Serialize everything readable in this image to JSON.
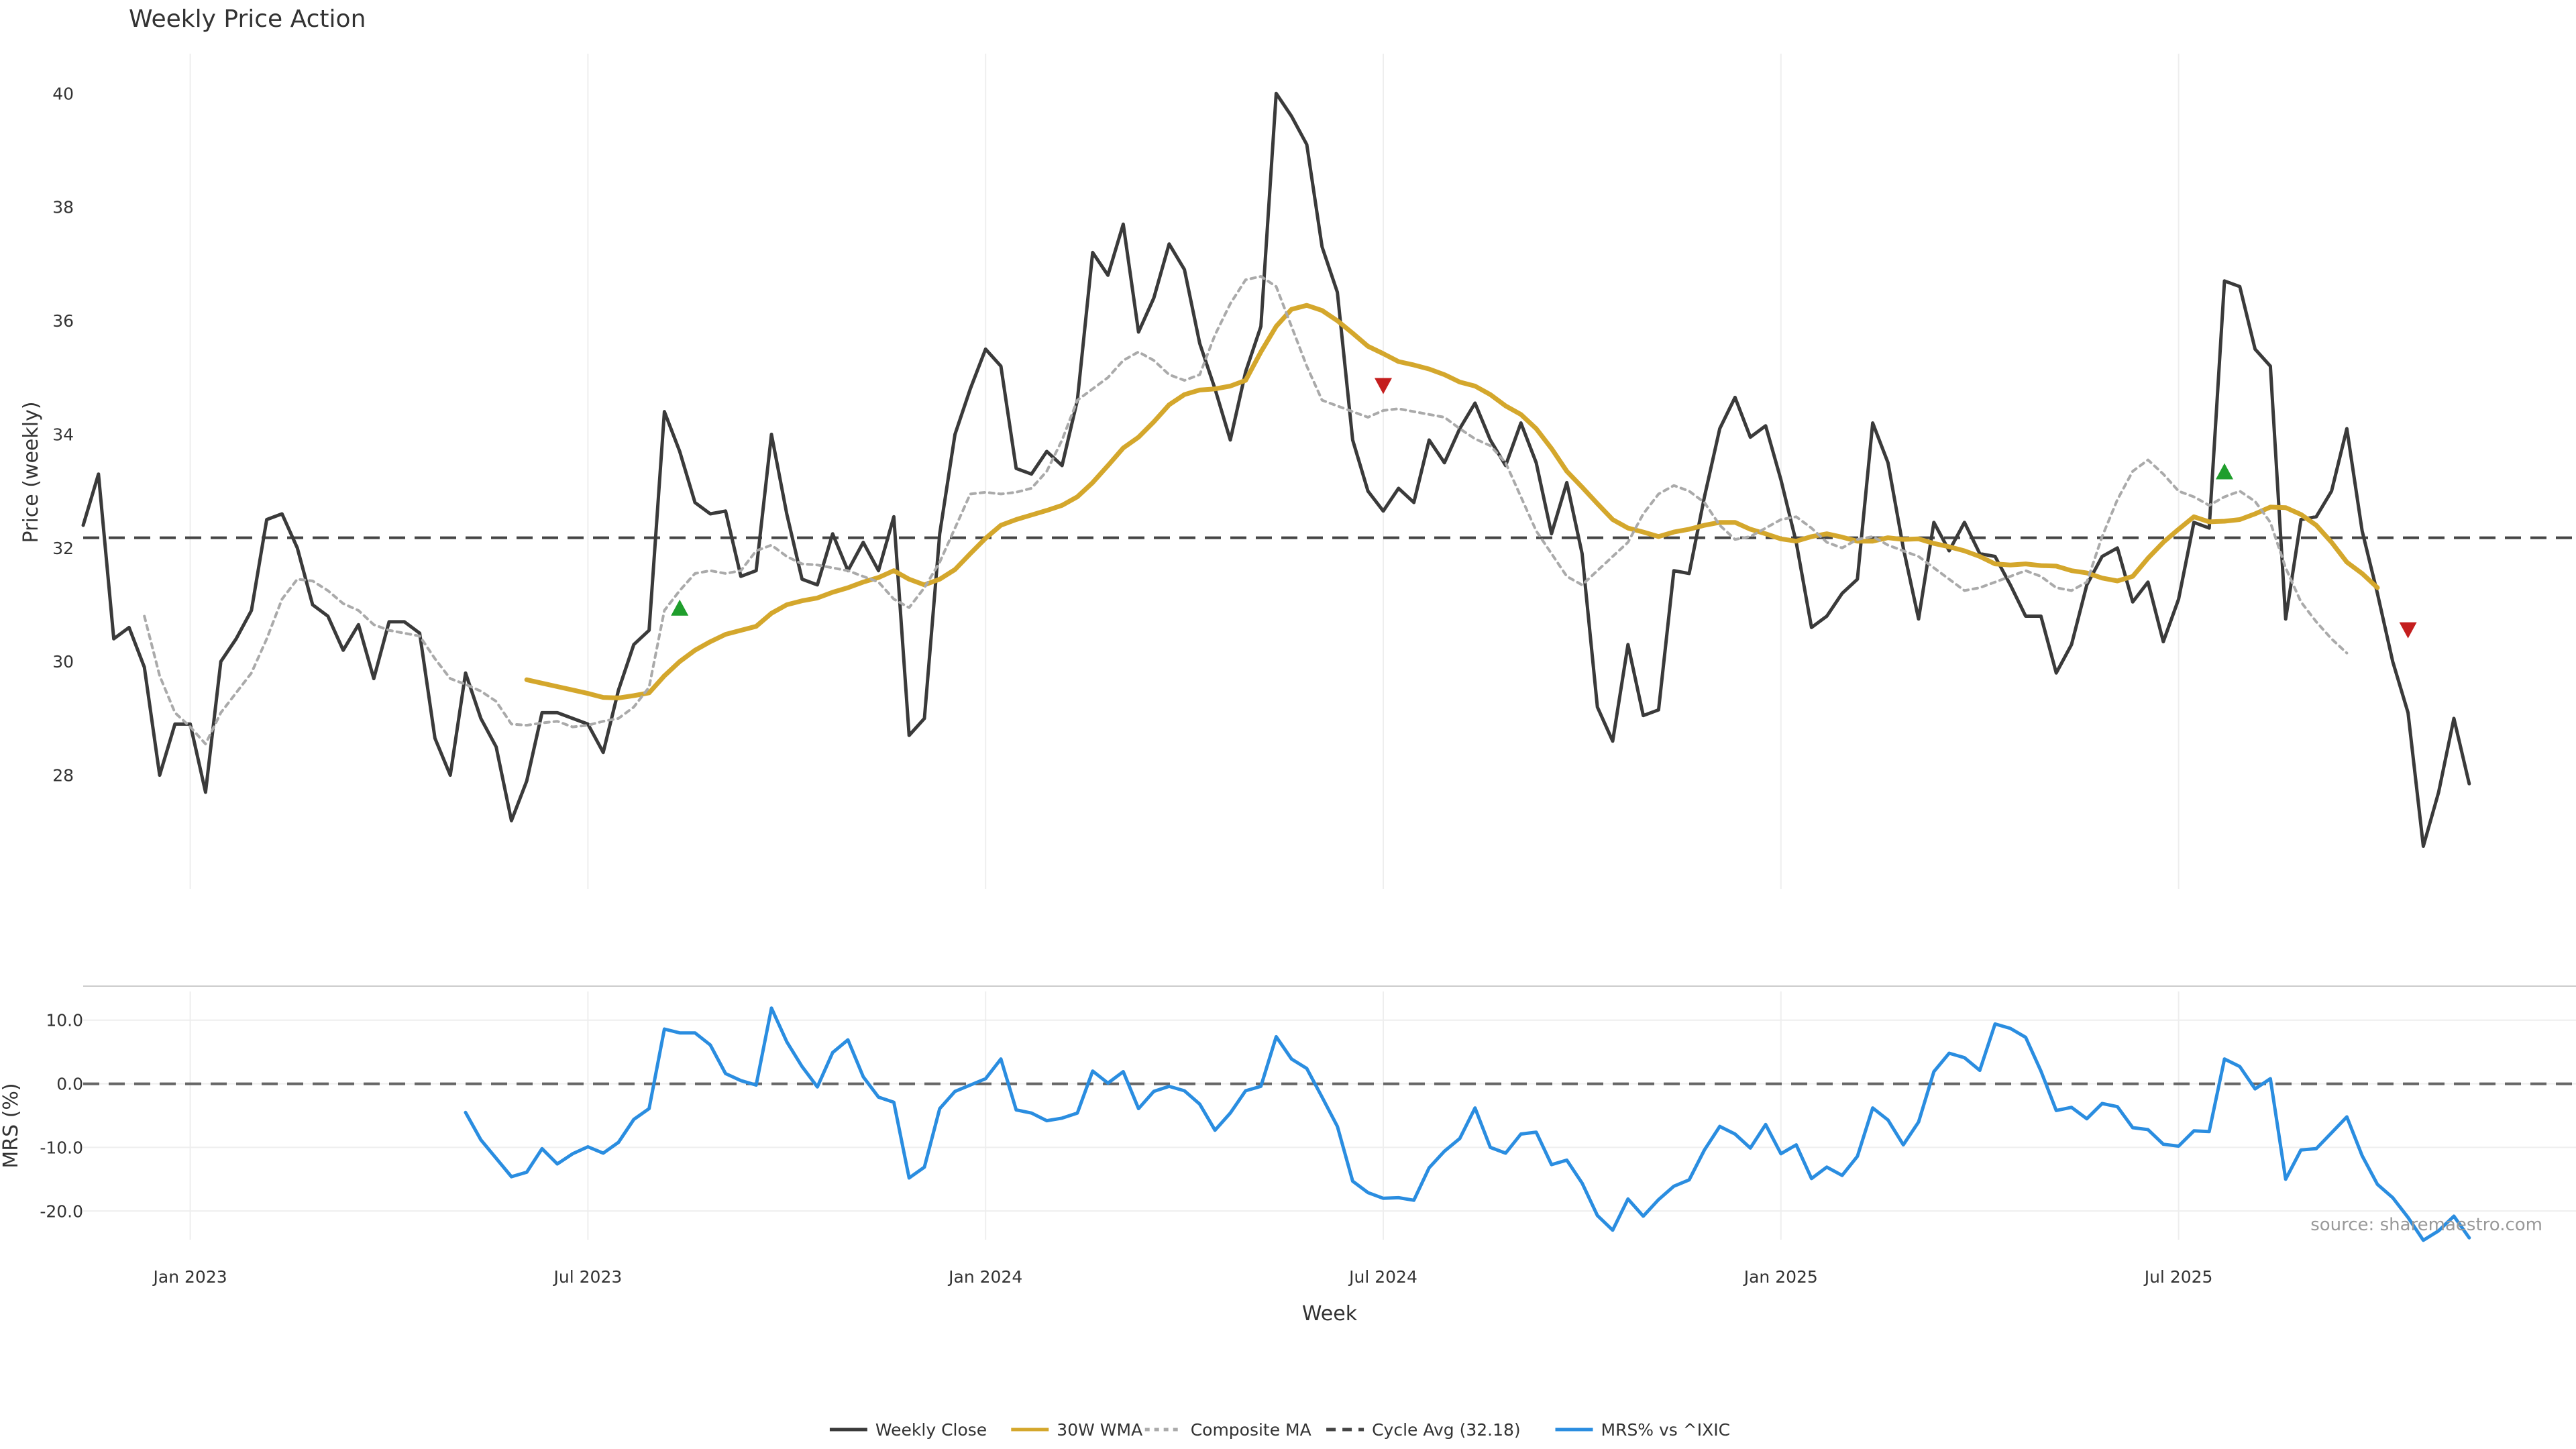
{
  "chart_data": {
    "type": "line",
    "title": "Weekly Price Action",
    "xlabel": "Week",
    "ylabel": "Price (weekly)",
    "ylabel2": "MRS (%)",
    "source": "source: sharemaestro.com",
    "x_tick_labels": [
      "Jan 2023",
      "Jul 2023",
      "Jan 2024",
      "Jul 2024",
      "Jan 2025",
      "Jul 2025"
    ],
    "x_tick_weeks": [
      7,
      33,
      59,
      85,
      111,
      137
    ],
    "y_ticks": [
      28,
      30,
      32,
      34,
      36,
      38,
      40
    ],
    "y_ticks_mrs": [
      10,
      0,
      -10,
      -20
    ],
    "y_ticks_mrs_labels": [
      "10.0",
      "0.0",
      "-10.0",
      "-20.0"
    ],
    "ylim": [
      26.0,
      40.7
    ],
    "ylim_mrs": [
      -24.5,
      14.5
    ],
    "cycle_avg": 32.18,
    "series": [
      {
        "name": "Weekly Close",
        "color": "#3a3a3a",
        "style": "solid",
        "start": 0,
        "values": [
          32.4,
          33.3,
          30.4,
          30.6,
          29.9,
          28.0,
          28.9,
          28.9,
          27.7,
          30.0,
          30.4,
          30.9,
          32.5,
          32.6,
          32.0,
          31.0,
          30.8,
          30.2,
          30.65,
          29.7,
          30.7,
          30.7,
          30.5,
          28.65,
          28.0,
          29.8,
          29.0,
          28.5,
          27.2,
          27.9,
          29.1,
          29.1,
          29.0,
          28.9,
          28.4,
          29.5,
          30.3,
          30.55,
          34.4,
          33.7,
          32.8,
          32.6,
          32.65,
          31.5,
          31.6,
          34.0,
          32.6,
          31.45,
          31.35,
          32.25,
          31.6,
          32.1,
          31.6,
          32.55,
          28.7,
          29.0,
          32.25,
          34.0,
          34.8,
          35.5,
          35.2,
          33.4,
          33.3,
          33.7,
          33.45,
          34.6,
          37.2,
          36.8,
          37.7,
          35.8,
          36.4,
          37.35,
          36.9,
          35.6,
          34.8,
          33.9,
          35.1,
          35.9,
          40.0,
          39.6,
          39.1,
          37.3,
          36.5,
          33.9,
          33.0,
          32.65,
          33.05,
          32.8,
          33.9,
          33.5,
          34.1,
          34.55,
          33.9,
          33.45,
          34.2,
          33.5,
          32.25,
          33.15,
          31.9,
          29.2,
          28.6,
          30.3,
          29.05,
          29.15,
          31.6,
          31.55,
          32.9,
          34.1,
          34.65,
          33.95,
          34.15,
          33.2,
          32.1,
          30.6,
          30.8,
          31.2,
          31.45,
          34.2,
          33.5,
          32.0,
          30.75,
          32.45,
          31.95,
          32.45,
          31.9,
          31.85,
          31.35,
          30.8,
          30.8,
          29.8,
          30.3,
          31.35,
          31.85,
          32.0,
          31.05,
          31.4,
          30.35,
          31.1,
          32.45,
          32.35,
          36.7,
          36.6,
          35.5,
          35.2,
          30.75,
          32.5,
          32.55,
          33.0,
          34.1,
          32.3,
          31.2,
          30.0,
          29.1,
          26.75,
          27.7,
          29.0,
          27.85
        ]
      },
      {
        "name": "30W WMA",
        "color": "#d4a72c",
        "style": "solid",
        "start": 29,
        "values": [
          29.68,
          29.62,
          29.56,
          29.5,
          29.44,
          29.37,
          29.36,
          29.4,
          29.45,
          29.75,
          30.0,
          30.2,
          30.35,
          30.48,
          30.55,
          30.62,
          30.85,
          31.0,
          31.07,
          31.12,
          31.22,
          31.3,
          31.4,
          31.48,
          31.6,
          31.45,
          31.35,
          31.45,
          31.62,
          31.9,
          32.17,
          32.4,
          32.5,
          32.58,
          32.66,
          32.75,
          32.9,
          33.15,
          33.45,
          33.76,
          33.95,
          34.22,
          34.52,
          34.7,
          34.78,
          34.8,
          34.85,
          34.95,
          35.45,
          35.9,
          36.2,
          36.27,
          36.18,
          36.0,
          35.78,
          35.55,
          35.42,
          35.28,
          35.22,
          35.15,
          35.05,
          34.92,
          34.85,
          34.7,
          34.5,
          34.35,
          34.1,
          33.75,
          33.35,
          33.07,
          32.78,
          32.5,
          32.35,
          32.28,
          32.2,
          32.28,
          32.33,
          32.4,
          32.45,
          32.45,
          32.33,
          32.25,
          32.16,
          32.12,
          32.2,
          32.25,
          32.19,
          32.12,
          32.12,
          32.18,
          32.15,
          32.16,
          32.08,
          32.02,
          31.95,
          31.85,
          31.72,
          31.7,
          31.72,
          31.69,
          31.68,
          31.6,
          31.56,
          31.47,
          31.42,
          31.5,
          31.82,
          32.1,
          32.33,
          32.55,
          32.46,
          32.47,
          32.5,
          32.6,
          32.72,
          32.71,
          32.59,
          32.4,
          32.1,
          31.75,
          31.55,
          31.3
        ]
      },
      {
        "name": "Composite MA",
        "color": "#aaaaaa",
        "style": "dotted",
        "start": 4,
        "values": [
          30.8,
          29.75,
          29.1,
          28.85,
          28.55,
          29.1,
          29.45,
          29.8,
          30.4,
          31.1,
          31.45,
          31.42,
          31.25,
          31.02,
          30.9,
          30.65,
          30.55,
          30.5,
          30.45,
          30.05,
          29.7,
          29.6,
          29.48,
          29.3,
          28.9,
          28.88,
          28.92,
          28.95,
          28.85,
          28.88,
          28.95,
          29.0,
          29.2,
          29.55,
          30.9,
          31.25,
          31.55,
          31.6,
          31.55,
          31.6,
          31.95,
          32.05,
          31.85,
          31.72,
          31.7,
          31.65,
          31.6,
          31.5,
          31.4,
          31.1,
          30.95,
          31.3,
          31.75,
          32.35,
          32.95,
          32.98,
          32.95,
          32.98,
          33.05,
          33.35,
          33.9,
          34.6,
          34.8,
          35.0,
          35.3,
          35.45,
          35.3,
          35.05,
          34.95,
          35.05,
          35.75,
          36.3,
          36.72,
          36.78,
          36.6,
          35.9,
          35.2,
          34.6,
          34.5,
          34.4,
          34.3,
          34.42,
          34.45,
          34.4,
          34.35,
          34.3,
          34.1,
          33.92,
          33.8,
          33.5,
          32.9,
          32.3,
          31.9,
          31.5,
          31.35,
          31.6,
          31.85,
          32.1,
          32.6,
          32.95,
          33.1,
          33.0,
          32.8,
          32.4,
          32.15,
          32.2,
          32.35,
          32.5,
          32.55,
          32.35,
          32.1,
          32.0,
          32.15,
          32.2,
          32.05,
          31.95,
          31.85,
          31.65,
          31.45,
          31.25,
          31.3,
          31.4,
          31.5,
          31.6,
          31.5,
          31.3,
          31.25,
          31.4,
          32.2,
          32.85,
          33.35,
          33.55,
          33.3,
          33.0,
          32.9,
          32.75,
          32.9,
          33.0,
          32.82,
          32.45,
          31.65,
          31.05,
          30.7,
          30.4,
          30.15
        ]
      },
      {
        "name": "MRS% vs ^IXIC",
        "color": "#2a8de0",
        "style": "solid",
        "start": 25,
        "values": [
          -4.5,
          -8.8,
          -11.7,
          -14.6,
          -13.9,
          -10.2,
          -12.6,
          -11.0,
          -9.9,
          -10.9,
          -9.2,
          -5.6,
          -3.9,
          8.6,
          8.0,
          8.0,
          6.1,
          1.6,
          0.5,
          -0.2,
          11.9,
          6.6,
          2.7,
          -0.5,
          4.9,
          6.9,
          1.1,
          -2.1,
          -2.9,
          -14.8,
          -13.1,
          -3.9,
          -1.2,
          -0.2,
          0.8,
          3.9,
          -4.1,
          -4.6,
          -5.8,
          -5.4,
          -4.6,
          2.0,
          0.1,
          1.9,
          -3.9,
          -1.2,
          -0.4,
          -1.1,
          -3.2,
          -7.3,
          -4.6,
          -1.1,
          -0.4,
          7.4,
          3.9,
          2.4,
          -2.1,
          -6.7,
          -15.3,
          -17.1,
          -18.0,
          -17.9,
          -18.3,
          -13.2,
          -10.6,
          -8.6,
          -3.8,
          -10.0,
          -10.9,
          -7.9,
          -7.6,
          -12.7,
          -12.0,
          -15.6,
          -20.7,
          -23.0,
          -18.1,
          -20.8,
          -18.2,
          -16.1,
          -15.1,
          -10.4,
          -6.7,
          -7.9,
          -10.1,
          -6.4,
          -11.0,
          -9.6,
          -14.9,
          -13.1,
          -14.4,
          -11.4,
          -3.8,
          -5.7,
          -9.6,
          -6.0,
          1.9,
          4.8,
          4.1,
          2.1,
          9.4,
          8.7,
          7.3,
          2.0,
          -4.2,
          -3.7,
          -5.5,
          -3.1,
          -3.6,
          -6.9,
          -7.2,
          -9.5,
          -9.8,
          -7.4,
          -7.5,
          3.9,
          2.7,
          -0.8,
          0.8,
          -15.0,
          -10.4,
          -10.2,
          -7.7,
          -5.2,
          -11.3,
          -15.8,
          -17.9,
          -21.0,
          -24.6,
          -23.1,
          -20.8,
          -24.2
        ]
      }
    ],
    "markers_up": [
      {
        "week": 39,
        "value": 30.95
      },
      {
        "week": 140,
        "value": 33.35
      }
    ],
    "markers_down": [
      {
        "week": 85,
        "value": 34.85
      },
      {
        "week": 152,
        "value": 30.55
      }
    ],
    "legend": [
      {
        "label": "Weekly Close",
        "color": "#3a3a3a",
        "style": "solid"
      },
      {
        "label": "30W WMA",
        "color": "#d4a72c",
        "style": "solid"
      },
      {
        "label": "Composite MA",
        "color": "#aaaaaa",
        "style": "dotted"
      },
      {
        "label": "Cycle Avg (32.18)",
        "color": "#444444",
        "style": "dashed"
      },
      {
        "label": "MRS% vs ^IXIC",
        "color": "#2a8de0",
        "style": "solid"
      }
    ],
    "colors": {
      "marker_up": "#1f9e2c",
      "marker_down": "#c41e1e",
      "grid": "#eeeeee",
      "ref_line": "#444444",
      "ref_line_mrs": "#666666"
    }
  }
}
